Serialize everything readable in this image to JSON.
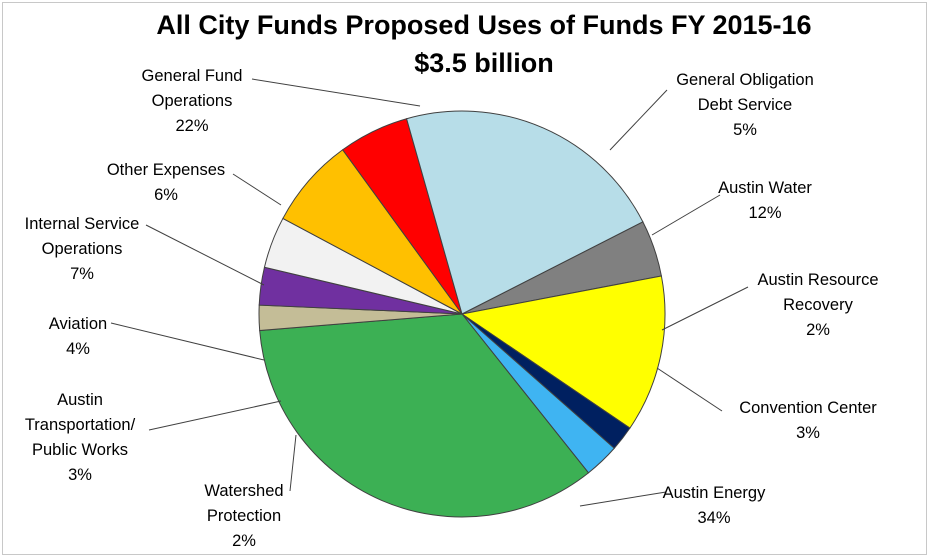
{
  "chart_data": {
    "type": "pie",
    "title": "All City Funds Proposed Uses of Funds FY 2015-16",
    "subtitle": "$3.5 billion",
    "slices": [
      {
        "label_lines": [
          "General Obligation",
          "Debt Service"
        ],
        "pct_text": "5%",
        "value": 4.5,
        "color": "#808080"
      },
      {
        "label_lines": [
          "Austin Water"
        ],
        "pct_text": "12%",
        "value": 12.5,
        "color": "#ffff00"
      },
      {
        "label_lines": [
          "Austin Resource",
          "Recovery"
        ],
        "pct_text": "2%",
        "value": 2.0,
        "color": "#002060"
      },
      {
        "label_lines": [
          "Convention Center"
        ],
        "pct_text": "3%",
        "value": 2.8,
        "color": "#3fb4f2"
      },
      {
        "label_lines": [
          "Austin Energy"
        ],
        "pct_text": "34%",
        "value": 34.4,
        "color": "#3cb054"
      },
      {
        "label_lines": [
          "Watershed",
          "Protection"
        ],
        "pct_text": "2%",
        "value": 2.0,
        "color": "#c4bd97"
      },
      {
        "label_lines": [
          "Austin",
          "Transportation/",
          "Public Works"
        ],
        "pct_text": "3%",
        "value": 3.0,
        "color": "#7030a0"
      },
      {
        "label_lines": [
          "Aviation"
        ],
        "pct_text": "4%",
        "value": 4.1,
        "color": "#f2f2f2"
      },
      {
        "label_lines": [
          "Internal Service",
          "Operations"
        ],
        "pct_text": "7%",
        "value": 7.2,
        "color": "#ffc000"
      },
      {
        "label_lines": [
          "Other Expenses"
        ],
        "pct_text": "6%",
        "value": 5.6,
        "color": "#ff0000"
      },
      {
        "label_lines": [
          "General Fund",
          "Operations"
        ],
        "pct_text": "22%",
        "value": 21.9,
        "color": "#b7dde8"
      }
    ]
  }
}
